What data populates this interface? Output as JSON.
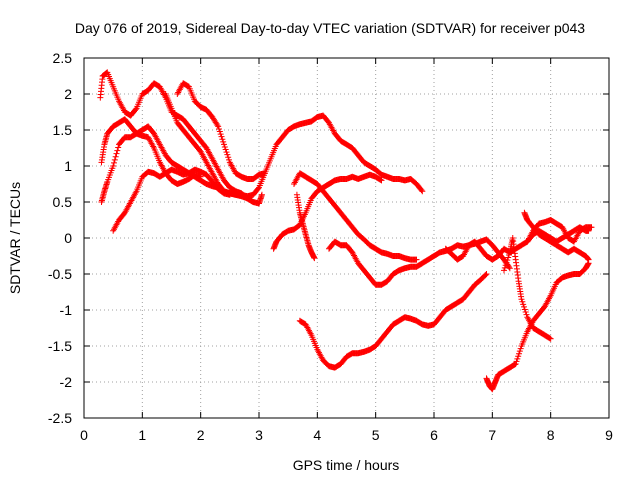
{
  "chart_data": {
    "type": "scatter",
    "title": "Day 076 of 2019, Sidereal Day-to-day VTEC variation (SDTVAR) for receiver p043",
    "xlabel": "GPS time / hours",
    "ylabel": "SDTVAR / TECUs",
    "xlim": [
      0,
      9
    ],
    "ylim": [
      -2.5,
      2.5
    ],
    "x_ticks": [
      0,
      1,
      2,
      3,
      4,
      5,
      6,
      7,
      8,
      9
    ],
    "y_ticks": [
      -2.5,
      -2,
      -1.5,
      -1,
      -0.5,
      0,
      0.5,
      1,
      1.5,
      2,
      2.5
    ],
    "grid": true,
    "marker": "+",
    "series_color": "#ff0000",
    "tracks": [
      [
        [
          0.28,
          1.95
        ],
        [
          0.32,
          2.25
        ],
        [
          0.4,
          2.3
        ],
        [
          0.5,
          2.1
        ],
        [
          0.6,
          1.9
        ],
        [
          0.7,
          1.75
        ],
        [
          0.8,
          1.7
        ],
        [
          0.9,
          1.8
        ],
        [
          1.0,
          2.0
        ],
        [
          1.1,
          2.05
        ],
        [
          1.2,
          2.15
        ],
        [
          1.3,
          2.1
        ],
        [
          1.4,
          1.95
        ],
        [
          1.5,
          1.75
        ],
        [
          1.6,
          1.7
        ],
        [
          1.7,
          1.65
        ],
        [
          1.8,
          1.55
        ],
        [
          1.9,
          1.45
        ],
        [
          2.0,
          1.35
        ],
        [
          2.1,
          1.25
        ],
        [
          2.2,
          1.1
        ],
        [
          2.3,
          0.95
        ],
        [
          2.4,
          0.8
        ],
        [
          2.5,
          0.7
        ],
        [
          2.6,
          0.65
        ],
        [
          2.7,
          0.62
        ],
        [
          2.8,
          0.55
        ],
        [
          2.9,
          0.5
        ]
      ],
      [
        [
          0.3,
          1.05
        ],
        [
          0.35,
          1.3
        ],
        [
          0.4,
          1.45
        ],
        [
          0.5,
          1.55
        ],
        [
          0.6,
          1.6
        ],
        [
          0.7,
          1.65
        ],
        [
          0.8,
          1.55
        ],
        [
          0.9,
          1.45
        ],
        [
          1.0,
          1.5
        ],
        [
          1.1,
          1.55
        ],
        [
          1.2,
          1.45
        ],
        [
          1.3,
          1.3
        ],
        [
          1.4,
          1.15
        ],
        [
          1.5,
          1.05
        ],
        [
          1.6,
          1.0
        ],
        [
          1.7,
          0.95
        ],
        [
          1.8,
          0.9
        ],
        [
          1.9,
          0.85
        ],
        [
          2.0,
          0.8
        ],
        [
          2.1,
          0.75
        ],
        [
          2.2,
          0.72
        ],
        [
          2.3,
          0.7
        ],
        [
          2.4,
          0.65
        ],
        [
          2.5,
          0.62
        ],
        [
          2.6,
          0.6
        ],
        [
          2.7,
          0.6
        ],
        [
          2.8,
          0.58
        ],
        [
          2.9,
          0.6
        ],
        [
          3.0,
          0.7
        ],
        [
          3.1,
          0.9
        ],
        [
          3.2,
          1.1
        ],
        [
          3.3,
          1.3
        ],
        [
          3.4,
          1.4
        ],
        [
          3.5,
          1.5
        ],
        [
          3.6,
          1.55
        ],
        [
          3.7,
          1.58
        ],
        [
          3.8,
          1.6
        ],
        [
          3.9,
          1.62
        ],
        [
          4.0,
          1.68
        ],
        [
          4.1,
          1.7
        ],
        [
          4.2,
          1.6
        ],
        [
          4.3,
          1.45
        ],
        [
          4.4,
          1.35
        ],
        [
          4.5,
          1.3
        ],
        [
          4.6,
          1.25
        ],
        [
          4.7,
          1.15
        ],
        [
          4.8,
          1.05
        ],
        [
          4.9,
          1.0
        ],
        [
          5.0,
          0.95
        ],
        [
          5.1,
          0.88
        ],
        [
          5.2,
          0.85
        ],
        [
          5.3,
          0.82
        ],
        [
          5.4,
          0.82
        ],
        [
          5.5,
          0.8
        ],
        [
          5.6,
          0.82
        ],
        [
          5.7,
          0.75
        ],
        [
          5.8,
          0.65
        ]
      ],
      [
        [
          0.3,
          0.5
        ],
        [
          0.35,
          0.65
        ],
        [
          0.4,
          0.78
        ],
        [
          0.5,
          1.0
        ],
        [
          0.6,
          1.3
        ],
        [
          0.7,
          1.4
        ],
        [
          0.8,
          1.4
        ],
        [
          0.9,
          1.45
        ],
        [
          1.0,
          1.42
        ],
        [
          1.1,
          1.4
        ],
        [
          1.2,
          1.25
        ],
        [
          1.3,
          1.05
        ],
        [
          1.4,
          0.9
        ],
        [
          1.5,
          0.8
        ],
        [
          1.6,
          0.75
        ],
        [
          1.7,
          0.78
        ],
        [
          1.8,
          0.82
        ],
        [
          1.9,
          0.88
        ],
        [
          2.0,
          0.85
        ]
      ],
      [
        [
          0.5,
          0.1
        ],
        [
          0.6,
          0.25
        ],
        [
          0.7,
          0.35
        ],
        [
          0.8,
          0.5
        ],
        [
          0.9,
          0.65
        ],
        [
          1.0,
          0.85
        ],
        [
          1.1,
          0.92
        ],
        [
          1.2,
          0.9
        ],
        [
          1.3,
          0.85
        ],
        [
          1.4,
          0.9
        ],
        [
          1.5,
          0.95
        ],
        [
          1.6,
          0.92
        ],
        [
          1.7,
          0.88
        ],
        [
          1.8,
          0.9
        ],
        [
          1.9,
          0.95
        ],
        [
          2.0,
          0.92
        ],
        [
          2.1,
          0.88
        ],
        [
          2.2,
          0.78
        ],
        [
          2.3,
          0.68
        ],
        [
          2.4,
          0.62
        ],
        [
          2.5,
          0.6
        ]
      ],
      [
        [
          1.6,
          2.0
        ],
        [
          1.7,
          2.15
        ],
        [
          1.8,
          2.1
        ],
        [
          1.9,
          1.9
        ],
        [
          2.0,
          1.82
        ],
        [
          2.1,
          1.78
        ],
        [
          2.2,
          1.68
        ],
        [
          2.3,
          1.55
        ],
        [
          2.4,
          1.3
        ],
        [
          2.5,
          1.05
        ],
        [
          2.6,
          0.9
        ],
        [
          2.7,
          0.85
        ],
        [
          2.8,
          0.82
        ],
        [
          2.9,
          0.82
        ],
        [
          3.0,
          0.88
        ],
        [
          3.1,
          0.9
        ]
      ],
      [
        [
          1.4,
          2.0
        ],
        [
          1.5,
          1.8
        ],
        [
          1.6,
          1.6
        ],
        [
          1.7,
          1.5
        ],
        [
          1.8,
          1.4
        ],
        [
          1.9,
          1.3
        ],
        [
          2.0,
          1.2
        ],
        [
          2.1,
          1.05
        ],
        [
          2.2,
          0.9
        ],
        [
          2.3,
          0.75
        ],
        [
          2.4,
          0.65
        ],
        [
          2.5,
          0.62
        ],
        [
          2.6,
          0.6
        ],
        [
          2.7,
          0.58
        ],
        [
          2.8,
          0.55
        ],
        [
          2.9,
          0.5
        ],
        [
          3.0,
          0.48
        ],
        [
          3.05,
          0.6
        ]
      ],
      [
        [
          3.25,
          -0.15
        ],
        [
          3.3,
          -0.05
        ],
        [
          3.4,
          0.05
        ],
        [
          3.5,
          0.1
        ],
        [
          3.6,
          0.12
        ],
        [
          3.7,
          0.18
        ],
        [
          3.8,
          0.35
        ],
        [
          3.9,
          0.55
        ],
        [
          4.0,
          0.65
        ],
        [
          4.1,
          0.7
        ],
        [
          4.2,
          0.75
        ],
        [
          4.3,
          0.8
        ],
        [
          4.4,
          0.82
        ],
        [
          4.5,
          0.82
        ],
        [
          4.6,
          0.85
        ],
        [
          4.7,
          0.82
        ],
        [
          4.8,
          0.85
        ],
        [
          4.9,
          0.88
        ],
        [
          5.0,
          0.85
        ],
        [
          5.1,
          0.8
        ]
      ],
      [
        [
          3.6,
          0.75
        ],
        [
          3.7,
          0.9
        ],
        [
          3.8,
          0.85
        ],
        [
          3.9,
          0.8
        ],
        [
          4.0,
          0.75
        ],
        [
          4.1,
          0.65
        ],
        [
          4.2,
          0.55
        ],
        [
          4.3,
          0.45
        ],
        [
          4.4,
          0.35
        ],
        [
          4.5,
          0.25
        ],
        [
          4.6,
          0.15
        ],
        [
          4.7,
          0.05
        ],
        [
          4.8,
          -0.02
        ],
        [
          4.9,
          -0.1
        ],
        [
          5.0,
          -0.15
        ],
        [
          5.1,
          -0.2
        ],
        [
          5.2,
          -0.22
        ],
        [
          5.3,
          -0.25
        ],
        [
          5.4,
          -0.25
        ],
        [
          5.5,
          -0.28
        ],
        [
          5.6,
          -0.3
        ],
        [
          5.7,
          -0.3
        ]
      ],
      [
        [
          3.65,
          0.6
        ],
        [
          3.7,
          0.35
        ],
        [
          3.75,
          0.2
        ],
        [
          3.8,
          0.05
        ],
        [
          3.85,
          -0.1
        ],
        [
          3.9,
          -0.2
        ],
        [
          3.95,
          -0.28
        ]
      ],
      [
        [
          4.2,
          -0.15
        ],
        [
          4.3,
          -0.05
        ],
        [
          4.4,
          -0.1
        ],
        [
          4.5,
          -0.1
        ],
        [
          4.6,
          -0.2
        ],
        [
          4.7,
          -0.35
        ],
        [
          4.8,
          -0.45
        ],
        [
          4.9,
          -0.55
        ],
        [
          5.0,
          -0.65
        ],
        [
          5.1,
          -0.65
        ],
        [
          5.2,
          -0.6
        ],
        [
          5.3,
          -0.5
        ],
        [
          5.4,
          -0.45
        ],
        [
          5.5,
          -0.42
        ],
        [
          5.6,
          -0.4
        ],
        [
          5.7,
          -0.4
        ],
        [
          5.8,
          -0.35
        ],
        [
          5.9,
          -0.3
        ],
        [
          6.0,
          -0.25
        ],
        [
          6.1,
          -0.2
        ],
        [
          6.2,
          -0.18
        ],
        [
          6.3,
          -0.15
        ],
        [
          6.4,
          -0.1
        ],
        [
          6.5,
          -0.12
        ],
        [
          6.6,
          -0.1
        ],
        [
          6.7,
          -0.08
        ],
        [
          6.8,
          -0.05
        ],
        [
          6.9,
          -0.02
        ],
        [
          7.0,
          -0.1
        ],
        [
          7.1,
          -0.2
        ],
        [
          7.2,
          -0.3
        ],
        [
          7.3,
          -0.42
        ]
      ],
      [
        [
          3.7,
          -1.15
        ],
        [
          3.8,
          -1.2
        ],
        [
          3.9,
          -1.35
        ],
        [
          4.0,
          -1.55
        ],
        [
          4.1,
          -1.7
        ],
        [
          4.2,
          -1.78
        ],
        [
          4.3,
          -1.8
        ],
        [
          4.4,
          -1.75
        ],
        [
          4.5,
          -1.65
        ],
        [
          4.6,
          -1.6
        ],
        [
          4.7,
          -1.6
        ],
        [
          4.8,
          -1.58
        ],
        [
          4.9,
          -1.55
        ],
        [
          5.0,
          -1.5
        ],
        [
          5.1,
          -1.4
        ],
        [
          5.2,
          -1.3
        ],
        [
          5.3,
          -1.2
        ],
        [
          5.4,
          -1.15
        ],
        [
          5.5,
          -1.1
        ],
        [
          5.6,
          -1.12
        ],
        [
          5.7,
          -1.15
        ],
        [
          5.8,
          -1.2
        ],
        [
          5.9,
          -1.22
        ],
        [
          6.0,
          -1.2
        ],
        [
          6.1,
          -1.1
        ],
        [
          6.2,
          -1.0
        ],
        [
          6.3,
          -0.95
        ],
        [
          6.4,
          -0.9
        ],
        [
          6.5,
          -0.85
        ],
        [
          6.6,
          -0.75
        ],
        [
          6.7,
          -0.65
        ],
        [
          6.8,
          -0.58
        ],
        [
          6.9,
          -0.5
        ]
      ],
      [
        [
          6.2,
          -0.15
        ],
        [
          6.3,
          -0.22
        ],
        [
          6.4,
          -0.3
        ],
        [
          6.5,
          -0.25
        ],
        [
          6.6,
          -0.1
        ],
        [
          6.7,
          -0.05
        ],
        [
          6.8,
          -0.15
        ],
        [
          6.9,
          -0.25
        ],
        [
          7.0,
          -0.3
        ],
        [
          7.1,
          -0.25
        ],
        [
          7.2,
          -0.15
        ],
        [
          7.3,
          -0.2
        ],
        [
          7.4,
          -0.15
        ],
        [
          7.5,
          -0.1
        ],
        [
          7.6,
          -0.05
        ],
        [
          7.7,
          0.05
        ],
        [
          7.8,
          0.1
        ],
        [
          7.9,
          0.05
        ],
        [
          8.0,
          0.0
        ],
        [
          8.1,
          -0.05
        ],
        [
          8.2,
          0.0
        ],
        [
          8.3,
          0.05
        ],
        [
          8.4,
          0.1
        ],
        [
          8.5,
          0.15
        ],
        [
          8.6,
          0.1
        ],
        [
          8.65,
          0.1
        ]
      ],
      [
        [
          6.9,
          -1.95
        ],
        [
          6.95,
          -2.05
        ],
        [
          7.0,
          -2.1
        ],
        [
          7.05,
          -2.0
        ],
        [
          7.1,
          -1.9
        ],
        [
          7.2,
          -1.85
        ],
        [
          7.3,
          -1.8
        ],
        [
          7.4,
          -1.75
        ],
        [
          7.5,
          -1.5
        ],
        [
          7.6,
          -1.3
        ],
        [
          7.7,
          -1.15
        ],
        [
          7.8,
          -1.05
        ],
        [
          7.9,
          -0.95
        ],
        [
          8.0,
          -0.8
        ],
        [
          8.1,
          -0.62
        ],
        [
          8.2,
          -0.55
        ],
        [
          8.3,
          -0.52
        ],
        [
          8.4,
          -0.5
        ],
        [
          8.5,
          -0.5
        ],
        [
          8.6,
          -0.42
        ],
        [
          8.65,
          -0.35
        ]
      ],
      [
        [
          7.2,
          -0.45
        ],
        [
          7.3,
          -0.2
        ],
        [
          7.35,
          0.0
        ],
        [
          7.4,
          -0.3
        ],
        [
          7.45,
          -0.6
        ],
        [
          7.5,
          -0.85
        ],
        [
          7.6,
          -1.1
        ],
        [
          7.7,
          -1.25
        ],
        [
          7.8,
          -1.3
        ],
        [
          7.9,
          -1.35
        ],
        [
          8.0,
          -1.4
        ]
      ],
      [
        [
          7.55,
          0.35
        ],
        [
          7.6,
          0.25
        ],
        [
          7.7,
          0.15
        ],
        [
          7.8,
          0.05
        ],
        [
          7.9,
          0.0
        ],
        [
          8.0,
          -0.05
        ],
        [
          8.1,
          -0.1
        ],
        [
          8.2,
          -0.15
        ],
        [
          8.3,
          -0.2
        ],
        [
          8.4,
          -0.15
        ],
        [
          8.5,
          -0.2
        ],
        [
          8.6,
          -0.25
        ],
        [
          8.65,
          -0.3
        ]
      ],
      [
        [
          7.6,
          -0.05
        ],
        [
          7.7,
          0.1
        ],
        [
          7.8,
          0.2
        ],
        [
          7.9,
          0.22
        ],
        [
          8.0,
          0.25
        ],
        [
          8.1,
          0.2
        ],
        [
          8.2,
          0.15
        ],
        [
          8.3,
          0.0
        ],
        [
          8.4,
          -0.05
        ],
        [
          8.5,
          0.1
        ],
        [
          8.6,
          0.15
        ],
        [
          8.7,
          0.15
        ]
      ]
    ]
  }
}
